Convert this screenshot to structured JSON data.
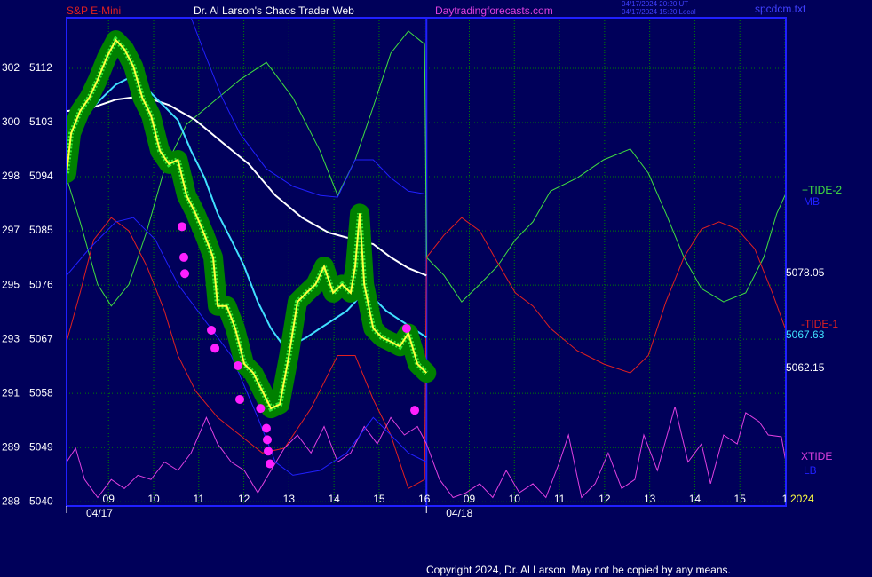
{
  "chart_data": {
    "type": "line",
    "title": "Dr. Al Larson's Chaos Trader Web",
    "instrument": "S&P E-Mini",
    "website": "Daytradingforecasts.com",
    "timestamps": [
      "04/17/2024 20:20 UT",
      "04/17/2024 15:20 Local"
    ],
    "file_name": "spcdcm.txt",
    "copyright": "Copyright 2024, Dr. Al Larson. May not be copied by any means.",
    "year": "2024",
    "xlim": [
      -0.93,
      15.02
    ],
    "ylim": [
      5039.3,
      5120.4
    ],
    "grid": true,
    "background": "#00005a",
    "xticks": [
      {
        "value": 0,
        "label": "09"
      },
      {
        "value": 1,
        "label": "10"
      },
      {
        "value": 2,
        "label": "11"
      },
      {
        "value": 3,
        "label": "12"
      },
      {
        "value": 4,
        "label": "13"
      },
      {
        "value": 5,
        "label": "14"
      },
      {
        "value": 6,
        "label": "15"
      },
      {
        "value": 7,
        "label": "16"
      },
      {
        "value": 8,
        "label": "09"
      },
      {
        "value": 9,
        "label": "10"
      },
      {
        "value": 10,
        "label": "11"
      },
      {
        "value": 11,
        "label": "12"
      },
      {
        "value": 12,
        "label": "13"
      },
      {
        "value": 13,
        "label": "14"
      },
      {
        "value": 14,
        "label": "15"
      },
      {
        "value": 15,
        "label": "1"
      }
    ],
    "date_ticks": [
      {
        "value": -0.93,
        "label": "04/17"
      },
      {
        "value": 7.05,
        "label": "04/18"
      }
    ],
    "yticks": [
      5040,
      5049,
      5058,
      5067,
      5076,
      5085,
      5094,
      5103,
      5112
    ],
    "degree_labels": [
      "288",
      "289",
      "291",
      "293",
      "295",
      "297",
      "298",
      "300",
      "302"
    ],
    "annotations": [
      "5078.05",
      "5067.63",
      "5062.15"
    ],
    "series": [
      {
        "name": "+TIDE-2",
        "color": "#40e040",
        "x": [
          -0.93,
          -0.63,
          -0.24,
          0.06,
          0.45,
          0.85,
          1.24,
          1.73,
          2.32,
          2.91,
          3.5,
          4.09,
          4.69,
          5.08,
          5.47,
          5.87,
          6.26,
          6.65,
          7.01,
          7.05,
          7.44,
          7.83,
          8.23,
          8.62,
          9.02,
          9.41,
          9.8,
          10.39,
          10.98,
          11.57,
          11.97,
          12.36,
          12.76,
          13.15,
          13.64,
          14.13,
          14.53,
          14.82,
          15.02
        ],
        "values": [
          5093.8,
          5086.5,
          5076.1,
          5072.5,
          5076.1,
          5085.0,
          5095.3,
          5102.7,
          5106.4,
          5110.1,
          5113.0,
          5107.1,
          5098.3,
          5090.9,
          5096.8,
          5105.6,
          5114.5,
          5118.2,
          5116.0,
          5080.6,
          5077.6,
          5073.2,
          5076.1,
          5079.1,
          5083.5,
          5086.5,
          5091.6,
          5093.8,
          5096.8,
          5098.6,
          5094.6,
          5087.9,
          5080.6,
          5075.4,
          5073.2,
          5074.7,
          5080.6,
          5087.9,
          5091.2
        ]
      },
      {
        "name": "MB",
        "color": "#2020ff",
        "x": [
          1.83,
          2.13,
          2.52,
          2.91,
          3.5,
          4.09,
          4.69,
          5.08,
          5.47,
          5.87,
          6.26,
          6.65,
          7.05
        ],
        "values": [
          5120.4,
          5114.5,
          5107.1,
          5101.2,
          5095.3,
          5092.4,
          5090.9,
          5090.6,
          5096.8,
          5096.8,
          5093.8,
          5091.6,
          5091.1
        ]
      },
      {
        "name": "-TIDE-1",
        "color": "#e02020",
        "x": [
          -0.93,
          -0.63,
          -0.33,
          0.06,
          0.45,
          0.85,
          1.24,
          1.54,
          1.93,
          2.42,
          2.91,
          3.41,
          3.9,
          4.49,
          5.08,
          5.47,
          5.87,
          6.26,
          6.65,
          7.01,
          7.05,
          7.44,
          7.83,
          8.23,
          8.62,
          9.02,
          9.41,
          9.8,
          10.39,
          10.98,
          11.57,
          11.97,
          12.36,
          12.76,
          13.15,
          13.54,
          13.94,
          14.33,
          14.72,
          15.02
        ],
        "values": [
          5066.6,
          5074.7,
          5083.5,
          5087.2,
          5085.0,
          5079.1,
          5071.7,
          5064.3,
          5058.4,
          5054.0,
          5051.1,
          5048.1,
          5048.9,
          5055.5,
          5064.3,
          5064.3,
          5057.0,
          5051.1,
          5042.2,
          5043.7,
          5080.6,
          5084.3,
          5087.2,
          5085.0,
          5079.8,
          5074.7,
          5072.5,
          5068.8,
          5065.1,
          5062.9,
          5061.4,
          5064.3,
          5073.2,
          5080.6,
          5085.3,
          5086.5,
          5085.3,
          5082.0,
          5074.7,
          5068.5
        ]
      },
      {
        "name": "XTIDE",
        "color": "#e040e0",
        "x": [
          -0.93,
          -0.73,
          -0.53,
          -0.24,
          0.06,
          0.35,
          0.65,
          0.94,
          1.24,
          1.54,
          1.83,
          2.17,
          2.42,
          2.72,
          3.01,
          3.31,
          3.6,
          3.9,
          4.19,
          4.49,
          4.78,
          5.08,
          5.37,
          5.67,
          5.96,
          6.26,
          6.56,
          6.85,
          7.05,
          7.34,
          7.64,
          7.93,
          8.23,
          8.52,
          8.82,
          9.11,
          9.41,
          9.7,
          10.0,
          10.2,
          10.49,
          10.79,
          11.08,
          11.38,
          11.67,
          11.87,
          12.17,
          12.56,
          12.85,
          13.15,
          13.35,
          13.64,
          13.94,
          14.13,
          14.43,
          14.63,
          14.92,
          15.02
        ],
        "values": [
          5046.6,
          5048.9,
          5043.7,
          5040.7,
          5043.7,
          5042.2,
          5044.4,
          5043.7,
          5046.6,
          5045.2,
          5048.1,
          5054.0,
          5049.6,
          5046.6,
          5045.2,
          5041.5,
          5045.2,
          5048.9,
          5051.1,
          5048.1,
          5052.5,
          5046.6,
          5048.1,
          5052.5,
          5049.6,
          5054.0,
          5051.1,
          5052.5,
          5049.6,
          5043.7,
          5040.7,
          5041.5,
          5043.0,
          5040.7,
          5045.2,
          5041.5,
          5043.0,
          5040.7,
          5046.6,
          5051.1,
          5040.7,
          5043.0,
          5048.1,
          5042.2,
          5043.7,
          5051.1,
          5045.2,
          5055.8,
          5046.6,
          5049.6,
          5043.0,
          5051.1,
          5049.6,
          5054.8,
          5053.3,
          5051.1,
          5050.8,
          5046.6
        ]
      },
      {
        "name": "LB",
        "color": "#2020ff",
        "x": [
          -0.93,
          -0.43,
          0.16,
          0.55,
          1.04,
          1.54,
          2.13,
          2.72,
          3.31,
          3.7,
          4.09,
          4.69,
          5.28,
          5.87,
          6.26,
          6.65,
          7.05
        ],
        "values": [
          5077.6,
          5082.0,
          5086.5,
          5087.2,
          5083.5,
          5076.1,
          5070.2,
          5064.3,
          5054.0,
          5046.6,
          5044.4,
          5045.2,
          5048.1,
          5054.0,
          5051.1,
          5048.1,
          5046.6
        ]
      },
      {
        "color": "#ffffff",
        "x": [
          -0.93,
          -0.43,
          0.16,
          0.75,
          1.34,
          1.93,
          2.52,
          3.11,
          3.7,
          4.29,
          4.88,
          5.47,
          5.87,
          6.26,
          6.65,
          7.05
        ],
        "values": [
          5104.9,
          5105.3,
          5106.8,
          5107.4,
          5105.9,
          5103.4,
          5099.7,
          5096.1,
          5090.9,
          5087.2,
          5084.7,
          5083.5,
          5082.8,
          5080.6,
          5078.8,
          5077.6
        ]
      },
      {
        "color": "#40e0ff",
        "x": [
          -0.93,
          -0.73,
          -0.43,
          -0.14,
          0.16,
          0.45,
          0.65,
          0.85,
          1.14,
          1.54,
          1.83,
          2.13,
          2.42,
          2.72,
          3.01,
          3.31,
          3.6,
          3.86,
          4.09,
          4.39,
          4.69,
          4.98,
          5.28,
          5.47,
          5.67,
          5.87,
          6.16,
          6.46,
          6.75,
          7.05
        ],
        "values": [
          5099.7,
          5102.0,
          5104.9,
          5107.1,
          5109.3,
          5110.4,
          5110.1,
          5108.6,
          5106.4,
          5103.4,
          5098.3,
          5093.8,
          5087.9,
          5083.5,
          5079.1,
          5073.2,
          5068.8,
          5066.1,
          5066.1,
          5067.3,
          5068.8,
          5070.2,
          5071.7,
          5073.2,
          5075.4,
          5073.9,
          5071.7,
          5070.2,
          5068.8,
          5067.3
        ]
      },
      {
        "color": "#ffff40",
        "bars_color": "#008000",
        "x": [
          -0.93,
          -0.83,
          -0.63,
          -0.43,
          -0.24,
          -0.04,
          0.16,
          0.35,
          0.55,
          0.75,
          0.94,
          1.14,
          1.34,
          1.54,
          1.73,
          1.93,
          2.13,
          2.32,
          2.42,
          2.62,
          2.81,
          3.01,
          3.21,
          3.41,
          3.6,
          3.8,
          4.0,
          4.19,
          4.39,
          4.59,
          4.78,
          4.98,
          5.18,
          5.37,
          5.47,
          5.57,
          5.67,
          5.87,
          6.06,
          6.26,
          6.46,
          6.65,
          6.85,
          7.05
        ],
        "values": [
          5094.6,
          5101.2,
          5104.9,
          5107.1,
          5110.1,
          5113.8,
          5116.7,
          5115.2,
          5112.3,
          5107.1,
          5104.2,
          5098.3,
          5096.1,
          5096.8,
          5090.9,
          5087.9,
          5084.3,
          5080.6,
          5072.5,
          5072.5,
          5068.8,
          5062.9,
          5061.4,
          5058.4,
          5055.5,
          5056.2,
          5064.3,
          5073.2,
          5074.7,
          5076.1,
          5079.1,
          5074.7,
          5076.1,
          5074.7,
          5079.1,
          5087.9,
          5076.1,
          5068.8,
          5067.3,
          5066.6,
          5065.8,
          5068.0,
          5062.9,
          5061.4
        ]
      }
    ],
    "signals": {
      "color": "#ff20ff",
      "x": [
        1.63,
        1.67,
        1.69,
        2.28,
        2.36,
        2.87,
        2.91,
        3.37,
        3.5,
        3.52,
        3.54,
        3.58,
        6.61,
        6.79
      ],
      "values": [
        5085.7,
        5080.6,
        5077.9,
        5068.5,
        5065.5,
        5062.6,
        5057.0,
        5055.5,
        5052.2,
        5050.3,
        5048.4,
        5046.3,
        5068.8,
        5055.2
      ]
    }
  }
}
